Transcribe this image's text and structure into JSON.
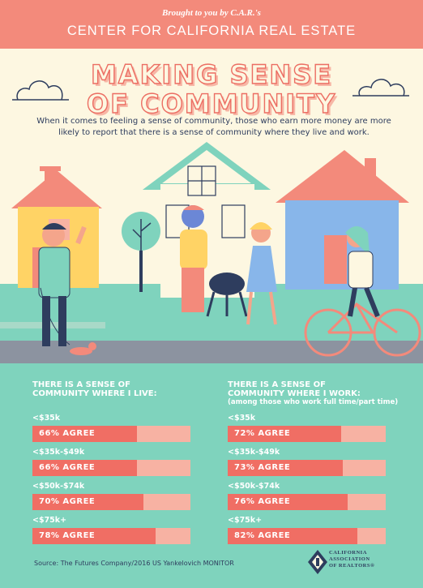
{
  "banner": {
    "brought_by": "Brought to you by C.A.R.'s",
    "center_name": "CENTER FOR CALIFORNIA REAL ESTATE"
  },
  "title": {
    "line1": "MAKING SENSE",
    "line2": "OF COMMUNITY"
  },
  "intro": "When it comes to feeling a sense of community, those who earn more money are more likely to report that there is a sense of community where they live and work.",
  "live": {
    "heading_line1": "THERE IS A SENSE OF",
    "heading_line2": "COMMUNITY WHERE I LIVE:",
    "rows": [
      {
        "income": "<$35k",
        "label": "66% AGREE",
        "value": 66
      },
      {
        "income": "<$35k-$49k",
        "label": "66% AGREE",
        "value": 66
      },
      {
        "income": "<$50k-$74k",
        "label": "70% AGREE",
        "value": 70
      },
      {
        "income": "<$75k+",
        "label": "78% AGREE",
        "value": 78
      }
    ]
  },
  "work": {
    "heading_line1": "THERE IS A SENSE OF",
    "heading_line2": "COMMUNITY WHERE I WORK:",
    "subheading": "(among those who work full time/part time)",
    "rows": [
      {
        "income": "<$35k",
        "label": "72% AGREE",
        "value": 72
      },
      {
        "income": "<$35k-$49k",
        "label": "73% AGREE",
        "value": 73
      },
      {
        "income": "<$50k-$74k",
        "label": "76% AGREE",
        "value": 76
      },
      {
        "income": "<$75k+",
        "label": "82% AGREE",
        "value": 82
      }
    ]
  },
  "source": "Source: The Futures Company/2016 US Yankelovich MONITOR",
  "logo": {
    "line1": "CALIFORNIA",
    "line2": "ASSOCIATION",
    "line3": "OF REALTORS®"
  },
  "colors": {
    "banner": "#f38a7b",
    "background": "#fdf7e1",
    "stats_background": "#7fd3bd",
    "bar_fill": "#f06e64",
    "bar_track": "#f7b2a3",
    "text_dark": "#2e3d5e"
  }
}
